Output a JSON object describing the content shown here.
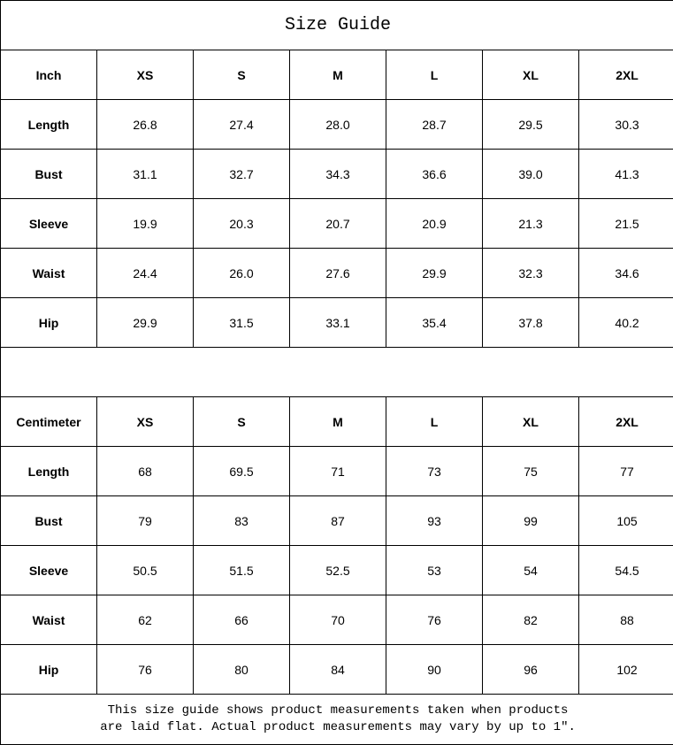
{
  "title": "Size Guide",
  "sizes": [
    "XS",
    "S",
    "M",
    "L",
    "XL",
    "2XL"
  ],
  "inch": {
    "unit_label": "Inch",
    "rows": [
      {
        "label": "Length",
        "values": [
          "26.8",
          "27.4",
          "28.0",
          "28.7",
          "29.5",
          "30.3"
        ]
      },
      {
        "label": "Bust",
        "values": [
          "31.1",
          "32.7",
          "34.3",
          "36.6",
          "39.0",
          "41.3"
        ]
      },
      {
        "label": "Sleeve",
        "values": [
          "19.9",
          "20.3",
          "20.7",
          "20.9",
          "21.3",
          "21.5"
        ]
      },
      {
        "label": "Waist",
        "values": [
          "24.4",
          "26.0",
          "27.6",
          "29.9",
          "32.3",
          "34.6"
        ]
      },
      {
        "label": "Hip",
        "values": [
          "29.9",
          "31.5",
          "33.1",
          "35.4",
          "37.8",
          "40.2"
        ]
      }
    ]
  },
  "cm": {
    "unit_label": "Centimeter",
    "rows": [
      {
        "label": "Length",
        "values": [
          "68",
          "69.5",
          "71",
          "73",
          "75",
          "77"
        ]
      },
      {
        "label": "Bust",
        "values": [
          "79",
          "83",
          "87",
          "93",
          "99",
          "105"
        ]
      },
      {
        "label": "Sleeve",
        "values": [
          "50.5",
          "51.5",
          "52.5",
          "53",
          "54",
          "54.5"
        ]
      },
      {
        "label": "Waist",
        "values": [
          "62",
          "66",
          "70",
          "76",
          "82",
          "88"
        ]
      },
      {
        "label": "Hip",
        "values": [
          "76",
          "80",
          "84",
          "90",
          "96",
          "102"
        ]
      }
    ]
  },
  "footer": {
    "line1": "This size guide shows product measurements taken when products",
    "line2": "are laid flat. Actual product measurements may vary by up to 1″."
  }
}
